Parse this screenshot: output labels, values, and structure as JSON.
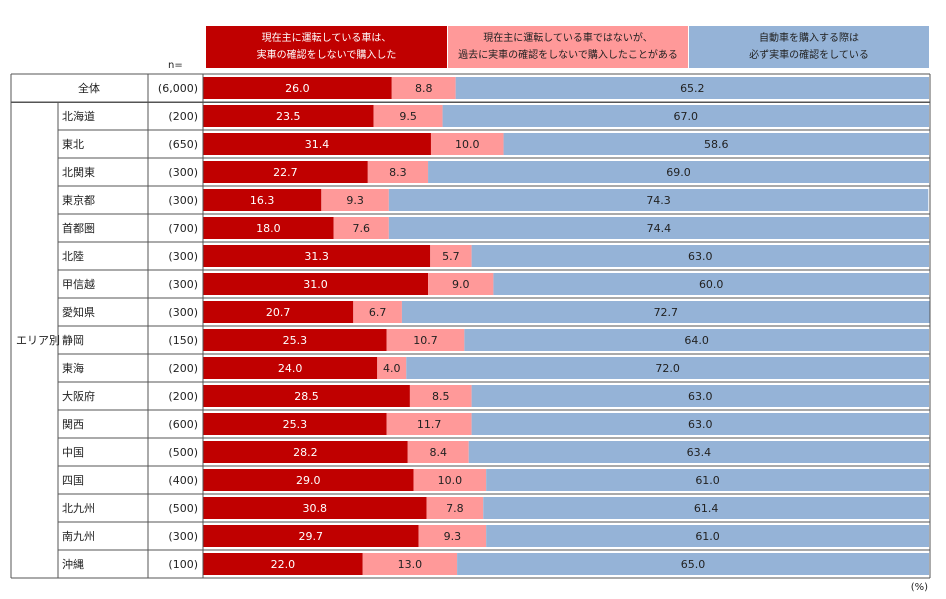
{
  "n_header": "n=",
  "unit_label": "(%)",
  "group_label": "エリア別",
  "legend": [
    {
      "text": "現在主に運転している車は、\n実車の確認をしないで購入した",
      "color": "#c00000",
      "text_color": "#ffffff"
    },
    {
      "text": "現在主に運転している車ではないが、\n過去に実車の確認をしないで購入したことがある",
      "color": "#ff9999",
      "text_color": "#222222"
    },
    {
      "text": "自動車を購入する際は\n必ず実車の確認をしている",
      "color": "#95b3d7",
      "text_color": "#222222"
    }
  ],
  "chart_data": {
    "type": "bar",
    "stacked": true,
    "orientation": "horizontal",
    "unit": "%",
    "series": [
      {
        "name": "現在主に運転している車は、実車の確認をしないで購入した",
        "color": "#c00000",
        "values": [
          26.0,
          23.5,
          31.4,
          22.7,
          16.3,
          18.0,
          31.3,
          31.0,
          20.7,
          25.3,
          24.0,
          28.5,
          25.3,
          28.2,
          29.0,
          30.8,
          29.7,
          22.0
        ]
      },
      {
        "name": "現在主に運転している車ではないが、過去に実車の確認をしないで購入したことがある",
        "color": "#ff9999",
        "values": [
          8.8,
          9.5,
          10.0,
          8.3,
          9.3,
          7.6,
          5.7,
          9.0,
          6.7,
          10.7,
          4.0,
          8.5,
          11.7,
          8.4,
          10.0,
          7.8,
          9.3,
          13.0
        ]
      },
      {
        "name": "自動車を購入する際は必ず実車の確認をしている",
        "color": "#95b3d7",
        "values": [
          65.2,
          67.0,
          58.6,
          69.0,
          74.3,
          74.4,
          63.0,
          60.0,
          72.7,
          64.0,
          72.0,
          63.0,
          63.0,
          63.4,
          61.0,
          61.4,
          61.0,
          65.0
        ]
      }
    ],
    "categories": [
      "全体",
      "北海道",
      "東北",
      "北関東",
      "東京都",
      "首都圏",
      "北陸",
      "甲信越",
      "愛知県",
      "静岡",
      "東海",
      "大阪府",
      "関西",
      "中国",
      "四国",
      "北九州",
      "南九州",
      "沖縄"
    ],
    "n_values": [
      "(6,000)",
      "(200)",
      "(650)",
      "(300)",
      "(300)",
      "(700)",
      "(300)",
      "(300)",
      "(300)",
      "(150)",
      "(200)",
      "(200)",
      "(600)",
      "(500)",
      "(400)",
      "(500)",
      "(300)",
      "(100)"
    ]
  }
}
